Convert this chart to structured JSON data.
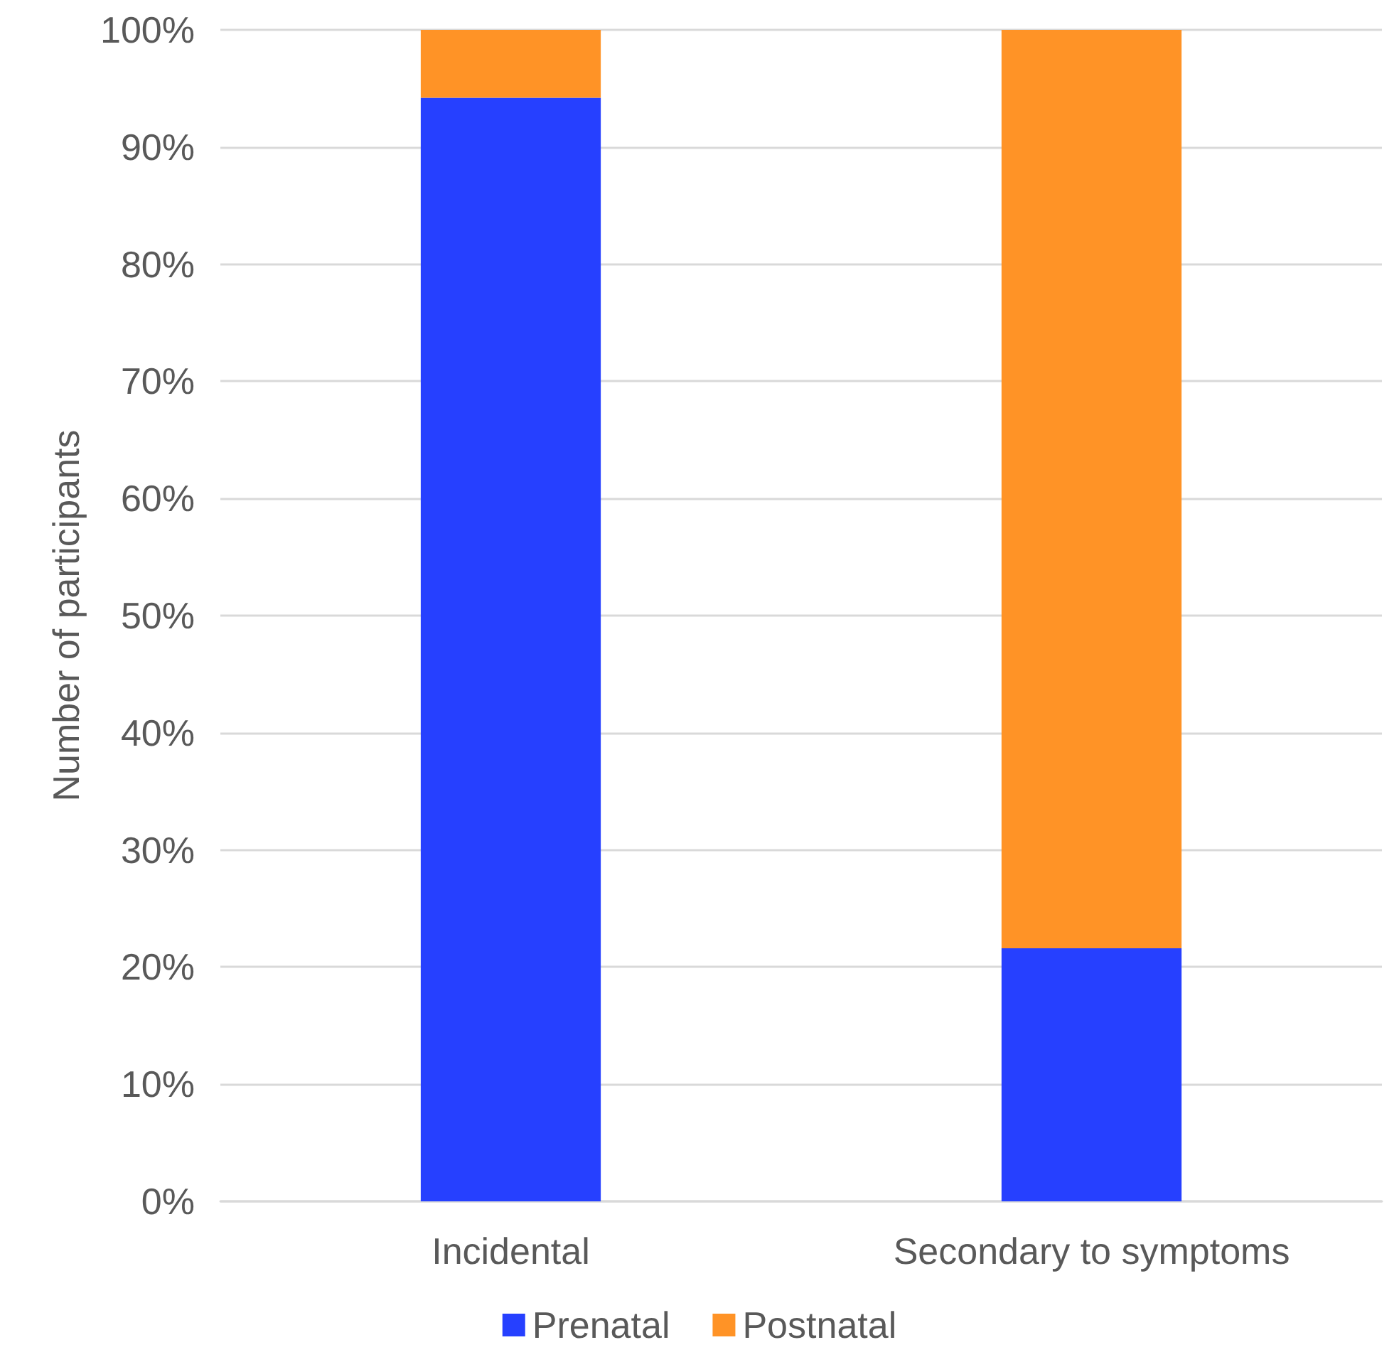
{
  "chart_data": {
    "type": "bar",
    "stacked": true,
    "ylabel": "Number of participants",
    "categories": [
      "Incidental",
      "Secondary to symptoms"
    ],
    "series": [
      {
        "name": "Prenatal",
        "color": "#2640ff",
        "values": [
          94.2,
          21.6
        ]
      },
      {
        "name": "Postnatal",
        "color": "#ff9326",
        "values": [
          5.8,
          78.4
        ]
      }
    ],
    "ylim": [
      0,
      100
    ],
    "yticks": [
      {
        "value": 0,
        "label": "0%"
      },
      {
        "value": 10,
        "label": "10%"
      },
      {
        "value": 20,
        "label": "20%"
      },
      {
        "value": 30,
        "label": "30%"
      },
      {
        "value": 40,
        "label": "40%"
      },
      {
        "value": 50,
        "label": "50%"
      },
      {
        "value": 60,
        "label": "60%"
      },
      {
        "value": 70,
        "label": "70%"
      },
      {
        "value": 80,
        "label": "80%"
      },
      {
        "value": 90,
        "label": "90%"
      },
      {
        "value": 100,
        "label": "100%"
      }
    ],
    "grid": "y",
    "legend": "bottom"
  }
}
